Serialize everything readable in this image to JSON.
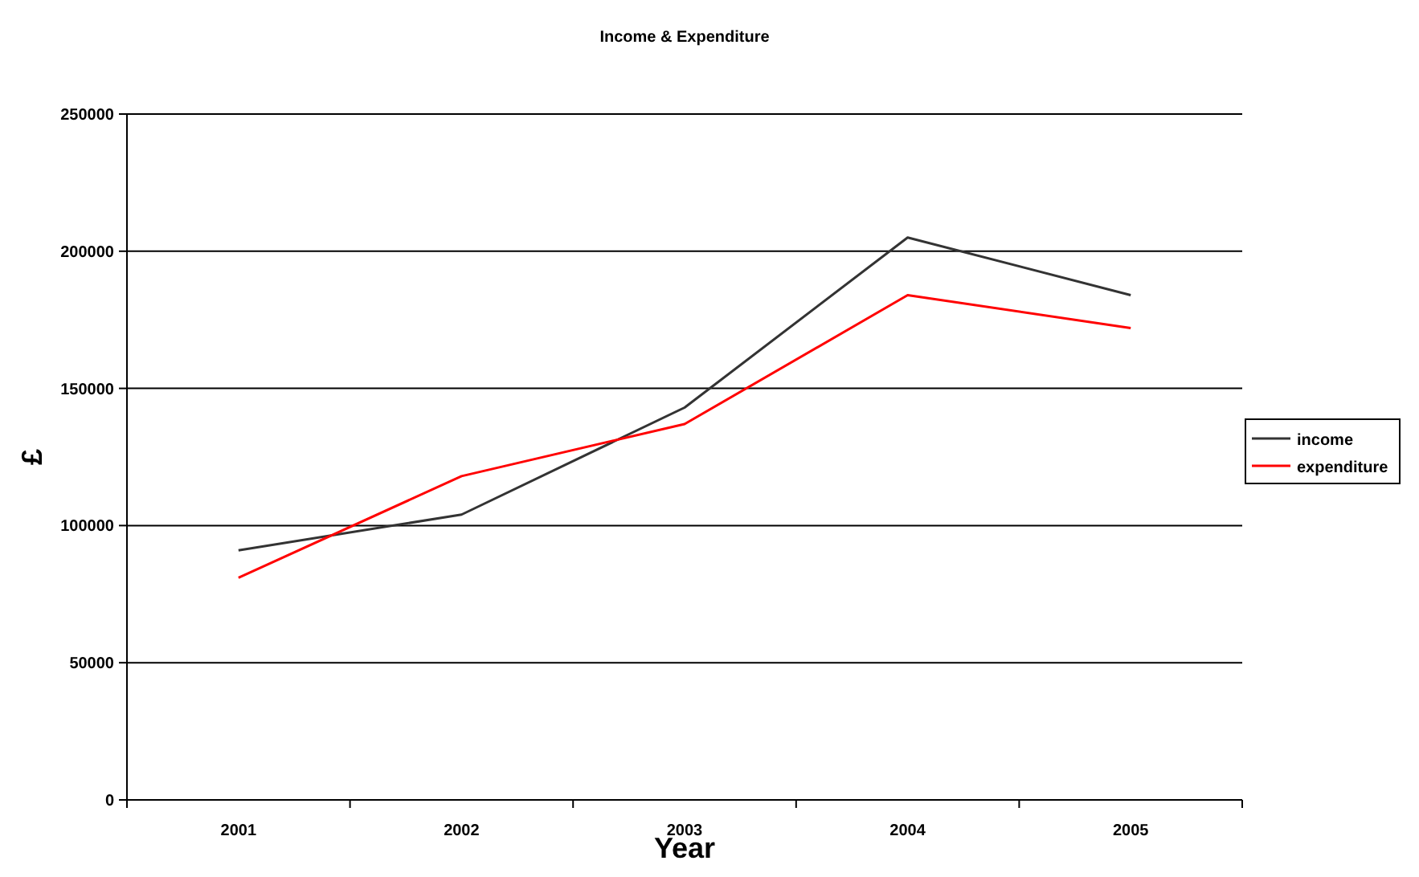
{
  "chart_data": {
    "type": "line",
    "title": "Income & Expenditure",
    "xlabel": "Year",
    "ylabel": "£",
    "categories": [
      "2001",
      "2002",
      "2003",
      "2004",
      "2005"
    ],
    "series": [
      {
        "name": "income",
        "color": "#333333",
        "values": [
          91000,
          104000,
          143000,
          205000,
          184000
        ]
      },
      {
        "name": "expenditure",
        "color": "#ff0000",
        "values": [
          81000,
          118000,
          137000,
          184000,
          172000
        ]
      }
    ],
    "ylim": [
      0,
      250000
    ],
    "yticks": [
      0,
      50000,
      100000,
      150000,
      200000,
      250000
    ],
    "grid": "y",
    "legend": "right",
    "marker": "none",
    "line_style": "solid"
  }
}
